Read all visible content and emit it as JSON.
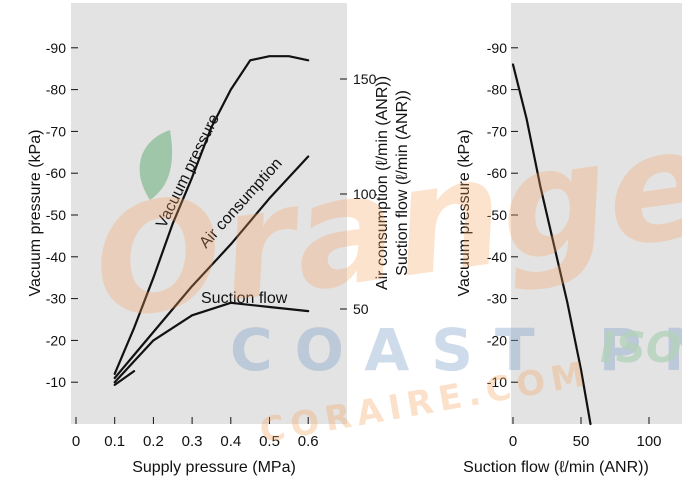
{
  "watermark": {
    "brand_lines": [
      "Orange",
      "COAST PNE",
      "CORAIRE.COM",
      "ISO"
    ],
    "colors": {
      "orange": "#f6a35f",
      "blue": "#7ea0c9",
      "green": "#8cc29b",
      "leaf": "#6bb07a"
    }
  },
  "colors": {
    "plot_bg": "#e3e3e3",
    "line": "#111111",
    "page_bg": "#ffffff"
  },
  "chart_data": [
    {
      "type": "line",
      "panel": "left",
      "xlabel": "Supply pressure (MPa)",
      "ylabel": "Vacuum pressure (kPa)",
      "right_ylabel_lines": [
        "Air consumption (ℓ/min (ANR))",
        "Suction flow (ℓ/min (ANR))"
      ],
      "x_ticks": [
        "0",
        "0.1",
        "0.2",
        "0.3",
        "0.4",
        "0.5",
        "0.6"
      ],
      "y_ticks": [
        "-10",
        "-20",
        "-30",
        "-40",
        "-50",
        "-60",
        "-70",
        "-80",
        "-90"
      ],
      "right_y_ticks": [
        "50",
        "100",
        "150"
      ],
      "xlim": [
        0,
        0.65
      ],
      "ylim": [
        0,
        -100
      ],
      "right_ylim": [
        0,
        180
      ],
      "grid": false,
      "series": [
        {
          "name": "Vacuum pressure",
          "axis": "left",
          "x": [
            0.1,
            0.15,
            0.2,
            0.25,
            0.3,
            0.35,
            0.4,
            0.45,
            0.5,
            0.55,
            0.6
          ],
          "y": [
            -12,
            -23,
            -35,
            -48,
            -59,
            -71,
            -80,
            -87,
            -88,
            -88,
            -87
          ]
        },
        {
          "name": "Air consumption",
          "axis": "left",
          "x": [
            0.1,
            0.2,
            0.3,
            0.4,
            0.5,
            0.6
          ],
          "y": [
            -11,
            -22,
            -33,
            -43,
            -54,
            -64
          ]
        },
        {
          "name": "Suction flow",
          "axis": "left",
          "x": [
            0.1,
            0.2,
            0.3,
            0.4,
            0.5,
            0.6
          ],
          "y": [
            -10,
            -20,
            -26,
            -29,
            -28,
            -27
          ]
        },
        {
          "name": "",
          "axis": "right",
          "x": [
            0.1,
            0.15
          ],
          "y": [
            17,
            23
          ]
        }
      ]
    },
    {
      "type": "line",
      "panel": "right",
      "xlabel": "Suction flow (ℓ/min (ANR))",
      "ylabel": "Vacuum pressure (kPa)",
      "x_ticks": [
        "0",
        "50",
        "100"
      ],
      "y_ticks": [
        "-10",
        "-20",
        "-30",
        "-40",
        "-50",
        "-60",
        "-70",
        "-80",
        "-90"
      ],
      "xlim": [
        0,
        195
      ],
      "ylim": [
        0,
        -100
      ],
      "grid": false,
      "series": [
        {
          "name": "",
          "x": [
            0,
            10,
            20,
            30,
            40,
            50,
            57
          ],
          "y": [
            -86,
            -73,
            -57,
            -43,
            -29,
            -13,
            0
          ]
        }
      ]
    }
  ]
}
